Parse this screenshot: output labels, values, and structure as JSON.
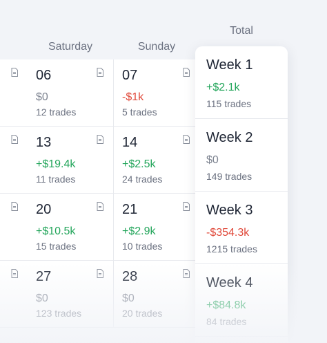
{
  "headers": {
    "saturday": "Saturday",
    "sunday": "Sunday",
    "total": "Total"
  },
  "rows": [
    {
      "saturday": {
        "date": "06",
        "pnl": "$0",
        "trades": "12 trades",
        "tone": "zero"
      },
      "sunday": {
        "date": "07",
        "pnl": "-$1k",
        "trades": "5 trades",
        "tone": "neg"
      }
    },
    {
      "saturday": {
        "date": "13",
        "pnl": "+$19.4k",
        "trades": "11 trades",
        "tone": "pos"
      },
      "sunday": {
        "date": "14",
        "pnl": "+$2.5k",
        "trades": "24 trades",
        "tone": "pos"
      }
    },
    {
      "saturday": {
        "date": "20",
        "pnl": "+$10.5k",
        "trades": "15 trades",
        "tone": "pos"
      },
      "sunday": {
        "date": "21",
        "pnl": "+$2.9k",
        "trades": "10 trades",
        "tone": "pos"
      }
    },
    {
      "saturday": {
        "date": "27",
        "pnl": "$0",
        "trades": "123 trades",
        "tone": "zero"
      },
      "sunday": {
        "date": "28",
        "pnl": "$0",
        "trades": "20 trades",
        "tone": "zero"
      }
    }
  ],
  "weeks": [
    {
      "label": "Week 1",
      "pnl": "+$2.1k",
      "trades": "115 trades",
      "tone": "pos"
    },
    {
      "label": "Week 2",
      "pnl": "$0",
      "trades": "149 trades",
      "tone": "zero"
    },
    {
      "label": "Week 3",
      "pnl": "-$354.3k",
      "trades": "1215 trades",
      "tone": "neg"
    },
    {
      "label": "Week 4",
      "pnl": "+$84.8k",
      "trades": "84 trades",
      "tone": "pos"
    }
  ],
  "icons": {
    "note": "document-icon"
  },
  "colors": {
    "positive": "#22a55a",
    "negative": "#e0493a",
    "neutral": "#7d8390"
  }
}
